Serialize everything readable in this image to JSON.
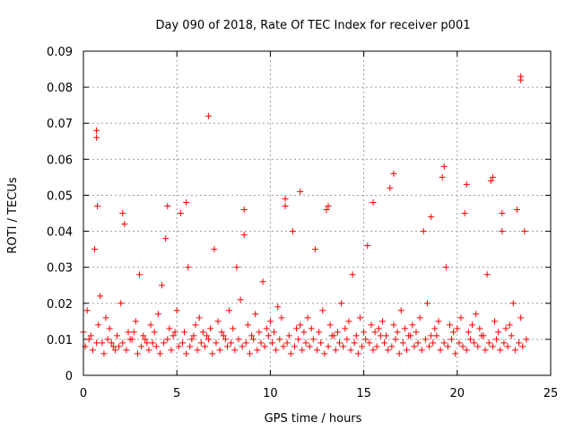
{
  "chart_data": {
    "type": "scatter",
    "title": "Day 090 of 2018, Rate Of TEC Index for receiver p001",
    "xlabel": "GPS time / hours",
    "ylabel": "ROTI / TECUs",
    "xlim": [
      0,
      25
    ],
    "ylim": [
      0,
      0.09
    ],
    "xticks": [
      0,
      5,
      10,
      15,
      20,
      25
    ],
    "xtick_labels": [
      "0",
      "5",
      "10",
      "15",
      "20",
      "25"
    ],
    "yticks": [
      0,
      0.01,
      0.02,
      0.03,
      0.04,
      0.05,
      0.06,
      0.07,
      0.08,
      0.09
    ],
    "ytick_labels": [
      "0",
      "0.01",
      "0.02",
      "0.03",
      "0.04",
      "0.05",
      "0.06",
      "0.07",
      "0.08",
      "0.09"
    ],
    "grid": true,
    "marker": "+",
    "color": "#ff0000",
    "series": [
      {
        "name": "ROTI",
        "x": [
          0.0,
          0.2,
          0.4,
          0.6,
          0.8,
          1.0,
          1.2,
          1.4,
          1.6,
          1.8,
          2.0,
          2.2,
          2.4,
          2.6,
          2.8,
          3.0,
          3.2,
          3.4,
          3.6,
          3.8,
          4.0,
          4.2,
          4.4,
          4.6,
          4.8,
          5.0,
          5.2,
          5.4,
          5.6,
          5.8,
          6.0,
          6.2,
          6.4,
          6.6,
          6.8,
          7.0,
          7.2,
          7.4,
          7.6,
          7.8,
          8.0,
          8.2,
          8.4,
          8.6,
          8.8,
          9.0,
          9.2,
          9.4,
          9.6,
          9.8,
          10.0,
          10.2,
          10.4,
          10.6,
          10.8,
          11.0,
          11.2,
          11.4,
          11.6,
          11.8,
          12.0,
          12.2,
          12.4,
          12.6,
          12.8,
          13.0,
          13.2,
          13.4,
          13.6,
          13.8,
          14.0,
          14.2,
          14.4,
          14.6,
          14.8,
          15.0,
          15.2,
          15.4,
          15.6,
          15.8,
          16.0,
          16.2,
          16.4,
          16.6,
          16.8,
          17.0,
          17.2,
          17.4,
          17.6,
          17.8,
          18.0,
          18.2,
          18.4,
          18.6,
          18.8,
          19.0,
          19.2,
          19.4,
          19.6,
          19.8,
          20.0,
          20.2,
          20.4,
          20.6,
          20.8,
          21.0,
          21.2,
          21.4,
          21.6,
          21.8,
          22.0,
          22.2,
          22.4,
          22.6,
          22.8,
          23.0,
          23.2,
          23.4,
          23.6,
          0.1,
          0.3,
          0.5,
          0.7,
          0.9,
          1.1,
          1.3,
          1.5,
          1.7,
          1.9,
          2.1,
          2.3,
          2.5,
          2.7,
          2.9,
          3.1,
          3.3,
          3.5,
          3.7,
          3.9,
          4.1,
          4.3,
          4.5,
          4.7,
          4.9,
          5.1,
          5.3,
          5.5,
          5.7,
          5.9,
          6.1,
          6.3,
          6.5,
          6.7,
          6.9,
          7.1,
          7.3,
          7.5,
          7.7,
          7.9,
          8.1,
          8.3,
          8.5,
          8.7,
          8.9,
          9.1,
          9.3,
          9.5,
          9.7,
          9.9,
          10.1,
          10.3,
          10.5,
          10.7,
          10.9,
          11.1,
          11.3,
          11.5,
          11.7,
          11.9,
          12.1,
          12.3,
          12.5,
          12.7,
          12.9,
          13.1,
          13.3,
          13.5,
          13.7,
          13.9,
          14.1,
          14.3,
          14.5,
          14.7,
          14.9,
          15.1,
          15.3,
          15.5,
          15.7,
          15.9,
          16.1,
          16.3,
          16.5,
          16.7,
          16.9,
          17.1,
          17.3,
          17.5,
          17.7,
          17.9,
          18.1,
          18.3,
          18.5,
          18.7,
          18.9,
          19.1,
          19.3,
          19.5,
          19.7,
          19.9,
          20.1,
          20.3,
          20.5,
          20.7,
          20.9,
          21.1,
          21.3,
          21.5,
          21.7,
          21.9,
          22.1,
          22.3,
          22.5,
          22.7,
          22.9,
          23.1,
          23.3,
          23.5,
          23.7,
          0.7,
          0.7,
          6.7,
          23.4,
          23.4,
          19.3,
          21.9,
          16.6,
          11.6,
          5.5,
          13.1,
          8.6,
          20.5,
          4.5,
          22.4,
          0.75,
          2.1,
          15.5,
          18.6,
          10.8
        ],
        "y": [
          0.012,
          0.018,
          0.011,
          0.035,
          0.014,
          0.009,
          0.016,
          0.013,
          0.008,
          0.011,
          0.02,
          0.042,
          0.012,
          0.01,
          0.015,
          0.028,
          0.011,
          0.009,
          0.014,
          0.012,
          0.017,
          0.025,
          0.038,
          0.013,
          0.011,
          0.018,
          0.045,
          0.012,
          0.03,
          0.01,
          0.014,
          0.016,
          0.012,
          0.011,
          0.013,
          0.035,
          0.015,
          0.012,
          0.01,
          0.018,
          0.013,
          0.03,
          0.021,
          0.039,
          0.014,
          0.011,
          0.017,
          0.012,
          0.026,
          0.013,
          0.015,
          0.012,
          0.019,
          0.016,
          0.047,
          0.011,
          0.04,
          0.013,
          0.014,
          0.012,
          0.016,
          0.013,
          0.035,
          0.012,
          0.018,
          0.046,
          0.014,
          0.011,
          0.012,
          0.02,
          0.013,
          0.015,
          0.028,
          0.011,
          0.016,
          0.012,
          0.036,
          0.014,
          0.012,
          0.013,
          0.015,
          0.011,
          0.052,
          0.014,
          0.012,
          0.018,
          0.013,
          0.011,
          0.014,
          0.012,
          0.016,
          0.04,
          0.02,
          0.011,
          0.013,
          0.015,
          0.055,
          0.03,
          0.014,
          0.012,
          0.013,
          0.016,
          0.045,
          0.012,
          0.014,
          0.017,
          0.013,
          0.011,
          0.028,
          0.054,
          0.015,
          0.012,
          0.04,
          0.013,
          0.014,
          0.02,
          0.046,
          0.016,
          0.04,
          0.008,
          0.01,
          0.007,
          0.009,
          0.022,
          0.006,
          0.01,
          0.009,
          0.007,
          0.008,
          0.009,
          0.007,
          0.01,
          0.012,
          0.006,
          0.008,
          0.01,
          0.007,
          0.009,
          0.008,
          0.006,
          0.009,
          0.01,
          0.007,
          0.012,
          0.008,
          0.009,
          0.006,
          0.008,
          0.011,
          0.007,
          0.009,
          0.008,
          0.01,
          0.006,
          0.009,
          0.007,
          0.011,
          0.008,
          0.009,
          0.007,
          0.01,
          0.008,
          0.009,
          0.006,
          0.01,
          0.007,
          0.009,
          0.008,
          0.011,
          0.009,
          0.007,
          0.01,
          0.008,
          0.009,
          0.006,
          0.008,
          0.01,
          0.007,
          0.009,
          0.008,
          0.01,
          0.007,
          0.009,
          0.006,
          0.008,
          0.011,
          0.007,
          0.009,
          0.008,
          0.01,
          0.007,
          0.009,
          0.006,
          0.008,
          0.01,
          0.009,
          0.007,
          0.008,
          0.011,
          0.009,
          0.007,
          0.008,
          0.01,
          0.006,
          0.009,
          0.007,
          0.011,
          0.008,
          0.009,
          0.007,
          0.01,
          0.008,
          0.009,
          0.011,
          0.007,
          0.009,
          0.008,
          0.01,
          0.006,
          0.009,
          0.008,
          0.007,
          0.01,
          0.009,
          0.008,
          0.011,
          0.007,
          0.009,
          0.008,
          0.01,
          0.007,
          0.009,
          0.008,
          0.011,
          0.007,
          0.009,
          0.008,
          0.01,
          0.066,
          0.068,
          0.072,
          0.083,
          0.082,
          0.058,
          0.055,
          0.056,
          0.051,
          0.048,
          0.047,
          0.046,
          0.053,
          0.047,
          0.045,
          0.047,
          0.045,
          0.048,
          0.044,
          0.049
        ]
      }
    ]
  }
}
